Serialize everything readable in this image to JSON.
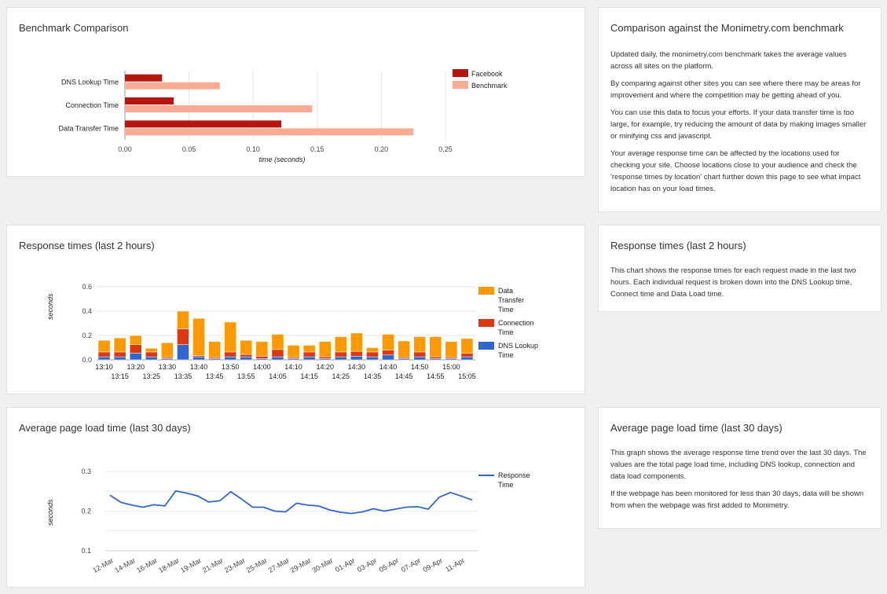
{
  "benchmark": {
    "title": "Benchmark Comparison",
    "chart_data": {
      "type": "bar",
      "orientation": "horizontal",
      "categories": [
        "DNS Lookup Time",
        "Connection Time",
        "Data Transfer Time"
      ],
      "series": [
        {
          "name": "Facebook",
          "values": [
            0.029,
            0.038,
            0.122
          ],
          "color": "#b5170f"
        },
        {
          "name": "Benchmark",
          "values": [
            0.074,
            0.146,
            0.225
          ],
          "color": "#f9ab93"
        }
      ],
      "xlabel": "time (seconds)",
      "xlim": [
        0,
        0.25
      ],
      "xticks": [
        "0.00",
        "0.05",
        "0.10",
        "0.15",
        "0.20",
        "0.25"
      ],
      "legend": "right",
      "grid": true
    }
  },
  "benchmark_info": {
    "title": "Comparison against the Monimetry.com benchmark",
    "paragraphs": [
      "Updated daily, the monimetry.com benchmark takes the average values across all sites on the platform.",
      "By comparing against other sites you can see where there may be areas for improvement and where the competition may be getting ahead of you.",
      "You can use this data to focus your efforts. If your data transfer time is too large, for example, try reducing the amount of data by making images smaller or minifying css and javascript.",
      "Your average response time can be affected by the locations used for checking your site. Choose locations close to your audience and check the 'response times by location' chart further down this page to see what impact location has on your load times."
    ]
  },
  "response": {
    "title": "Response times (last 2 hours)",
    "chart_data": {
      "type": "bar",
      "stacked": true,
      "ylabel": "seconds",
      "ylim": [
        0,
        0.6
      ],
      "yticks": [
        "0.0",
        "0.2",
        "0.4",
        "0.6"
      ],
      "legend": "right",
      "grid": true,
      "categories": [
        "13:10",
        "13:15",
        "13:20",
        "13:25",
        "13:30",
        "13:35",
        "13:40",
        "13:45",
        "13:50",
        "13:55",
        "14:00",
        "14:05",
        "14:10",
        "14:15",
        "14:20",
        "14:25",
        "14:30",
        "14:35",
        "14:40",
        "14:45",
        "14:50",
        "14:55",
        "15:00",
        "15:05"
      ],
      "series": [
        {
          "name": "DNS Lookup Time",
          "color": "#3366cc",
          "values": [
            0.025,
            0.025,
            0.055,
            0.025,
            0.01,
            0.125,
            0.025,
            0.01,
            0.025,
            0.025,
            0.01,
            0.025,
            0.01,
            0.025,
            0.01,
            0.025,
            0.03,
            0.025,
            0.04,
            0.01,
            0.025,
            0.01,
            0.01,
            0.025
          ]
        },
        {
          "name": "Connection Time",
          "color": "#dc3912",
          "values": [
            0.04,
            0.04,
            0.07,
            0.04,
            0.01,
            0.13,
            0.01,
            0.01,
            0.04,
            0.02,
            0.02,
            0.06,
            0.01,
            0.04,
            0.015,
            0.04,
            0.04,
            0.04,
            0.04,
            0.01,
            0.04,
            0.015,
            0.01,
            0.03
          ]
        },
        {
          "name": "Data Transfer Time",
          "color": "#ff9900",
          "values": [
            0.095,
            0.115,
            0.075,
            0.03,
            0.12,
            0.145,
            0.305,
            0.13,
            0.245,
            0.115,
            0.12,
            0.125,
            0.1,
            0.055,
            0.125,
            0.125,
            0.15,
            0.035,
            0.13,
            0.135,
            0.125,
            0.165,
            0.13,
            0.12
          ]
        }
      ]
    }
  },
  "response_info": {
    "title": "Response times (last 2 hours)",
    "paragraphs": [
      "This chart shows the response times for each request made in the last two hours. Each individual request is broken down into the DNS Lookup time, Connect time and Data Load time."
    ]
  },
  "avgload": {
    "title": "Average page load time (last 30 days)",
    "chart_data": {
      "type": "line",
      "ylabel": "seconds",
      "ylim": [
        0.1,
        0.3
      ],
      "yticks": [
        "0.1",
        "0.2",
        "0.3"
      ],
      "legend": "right",
      "grid": true,
      "xticks": [
        "12-Mar",
        "14-Mar",
        "16-Mar",
        "18-Mar",
        "19-Mar",
        "21-Mar",
        "23-Mar",
        "25-Mar",
        "27-Mar",
        "29-Mar",
        "30-Mar",
        "01-Apr",
        "03-Apr",
        "05-Apr",
        "07-Apr",
        "09-Apr",
        "11-Apr"
      ],
      "series": [
        {
          "name": "Response Time",
          "color": "#3366cc",
          "values": [
            0.24,
            0.222,
            0.215,
            0.21,
            0.216,
            0.213,
            0.251,
            0.245,
            0.238,
            0.223,
            0.226,
            0.249,
            0.23,
            0.21,
            0.21,
            0.2,
            0.198,
            0.22,
            0.215,
            0.213,
            0.203,
            0.197,
            0.194,
            0.198,
            0.206,
            0.2,
            0.205,
            0.21,
            0.211,
            0.205,
            0.235,
            0.247,
            0.238,
            0.228
          ]
        }
      ]
    }
  },
  "avgload_info": {
    "title": "Average page load time (last 30 days)",
    "paragraphs": [
      "This graph shows the average response time trend over the last 30 days. The values are the total page load time, including DNS lookup, connection and data load components.",
      "If the webpage has been monitored for less than 30 days, data will be shown from when the webpage was first added to Monimetry."
    ]
  }
}
